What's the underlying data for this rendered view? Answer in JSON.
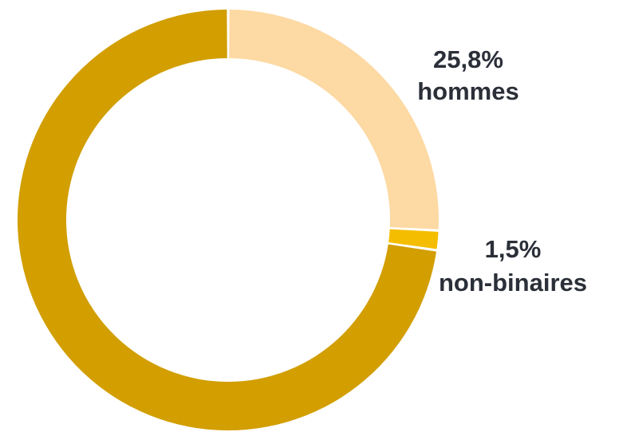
{
  "chart_data": {
    "type": "pie",
    "variant": "donut",
    "start": "top",
    "direction": "clockwise",
    "slices": [
      {
        "value": 25.8,
        "color": "#fdd9a3",
        "value_label": "25,8%",
        "category_label": "hommes"
      },
      {
        "value": 1.5,
        "color": "#f5bd00",
        "value_label": "1,5%",
        "category_label": "non-binaires"
      },
      {
        "value": 72.7,
        "color": "#d29e00",
        "value_label": "",
        "category_label": ""
      }
    ]
  }
}
